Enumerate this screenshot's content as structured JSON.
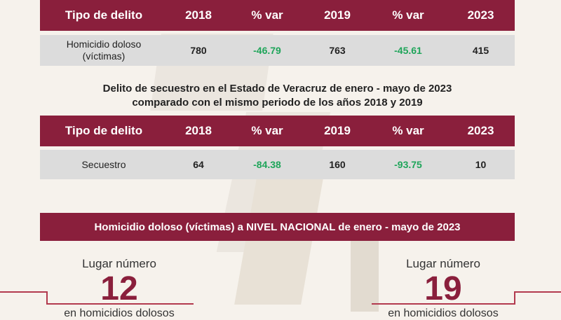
{
  "table1": {
    "headers": [
      "Tipo de delito",
      "2018",
      "% var",
      "2019",
      "% var",
      "2023"
    ],
    "row": {
      "tipo": "Homicidio doloso (víctimas)",
      "y2018": "780",
      "var1": "-46.79",
      "y2019": "763",
      "var2": "-45.61",
      "y2023": "415"
    }
  },
  "subtitle": {
    "line1": "Delito de secuestro en el Estado de Veracruz de enero - mayo de 2023",
    "line2": "comparado con el mismo periodo de los años 2018 y 2019"
  },
  "table2": {
    "headers": [
      "Tipo de delito",
      "2018",
      "% var",
      "2019",
      "% var",
      "2023"
    ],
    "row": {
      "tipo": "Secuestro",
      "y2018": "64",
      "var1": "-84.38",
      "y2019": "160",
      "var2": "-93.75",
      "y2023": "10"
    }
  },
  "banner": "Homicidio doloso (víctimas) a NIVEL NACIONAL de enero - mayo de 2023",
  "rank_left": {
    "label": "Lugar número",
    "number": "12",
    "foot": "en homicidios dolosos"
  },
  "rank_right": {
    "label": "Lugar número",
    "number": "19",
    "foot": "en homicidios dolosos"
  },
  "colors": {
    "primary": "#8a1f3c",
    "positive": "#1fa55a",
    "row_bg": "#dcdcdc"
  }
}
